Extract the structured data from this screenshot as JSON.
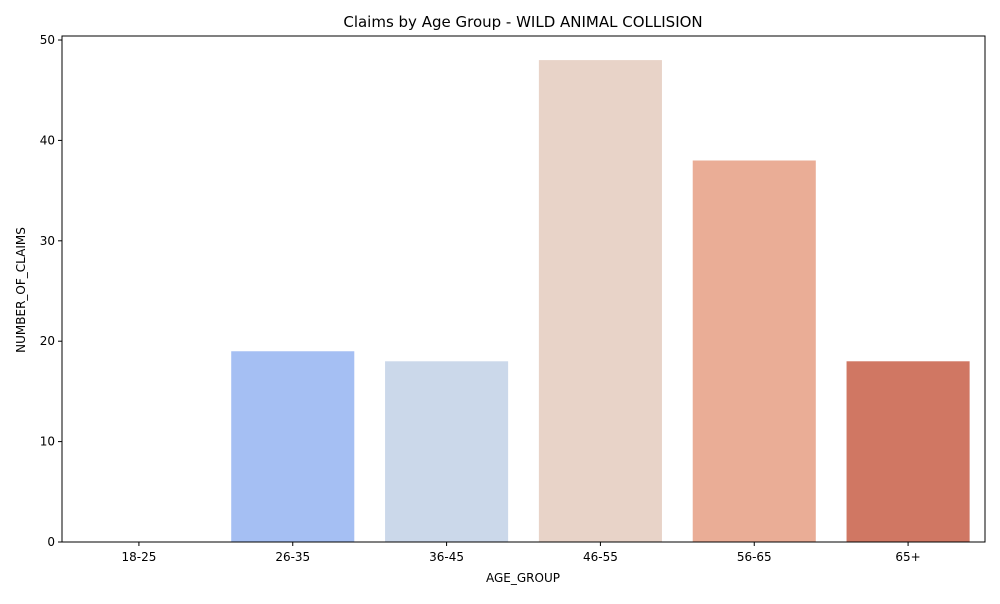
{
  "chart_data": {
    "type": "bar",
    "title": "Claims by Age Group - WILD ANIMAL COLLISION",
    "xlabel": "AGE_GROUP",
    "ylabel": "NUMBER_OF_CLAIMS",
    "categories": [
      "18-25",
      "26-35",
      "36-45",
      "46-55",
      "56-65",
      "65+"
    ],
    "values": [
      0,
      19,
      18,
      48,
      38,
      18
    ],
    "colors": [
      "#6b8ef0",
      "#a5bff3",
      "#cbd8ea",
      "#e8d3c8",
      "#eaad96",
      "#d07763"
    ],
    "ylim": [
      0,
      50.4
    ],
    "yticks": [
      0,
      10,
      20,
      30,
      40,
      50
    ],
    "grid": false,
    "legend": "none"
  }
}
